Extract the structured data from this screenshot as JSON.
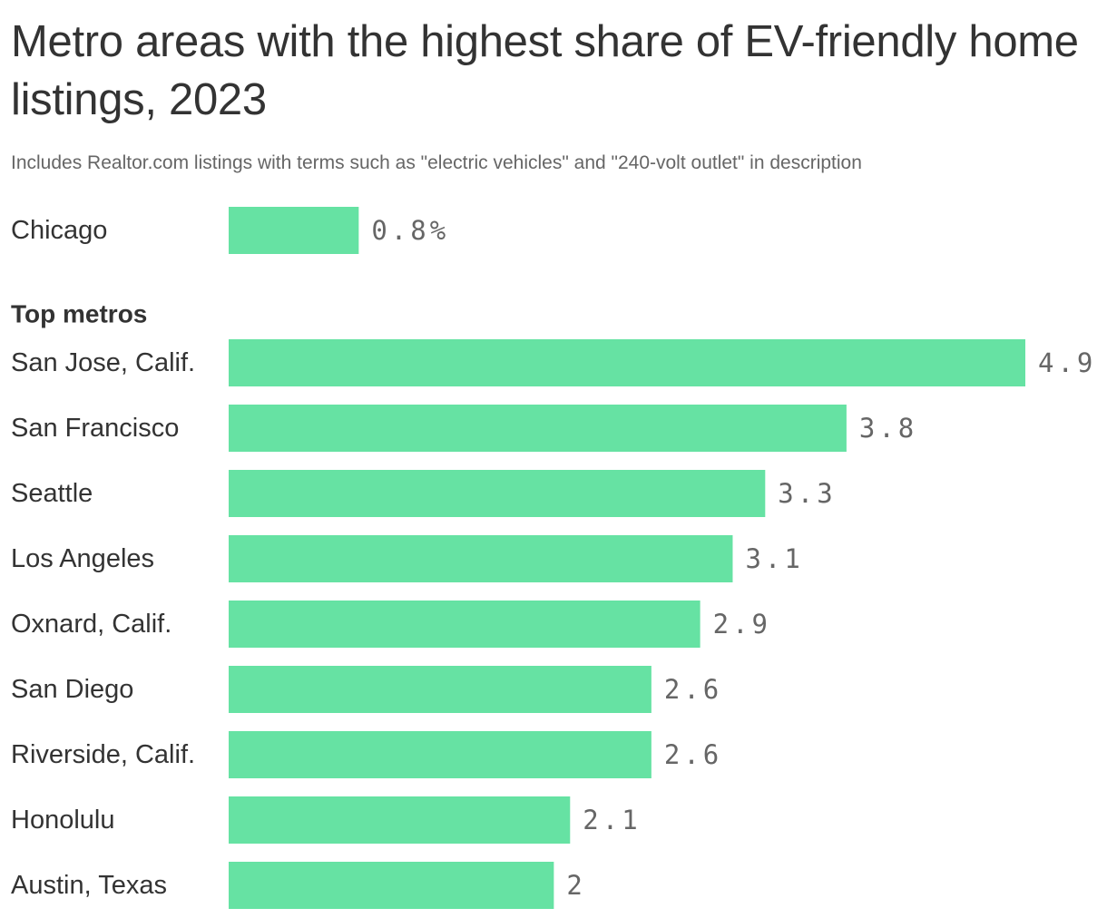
{
  "chart_data": {
    "type": "bar",
    "orientation": "horizontal",
    "title": "Metro areas with the highest share of EV-friendly home listings, 2023",
    "subtitle": "Includes Realtor.com listings with terms such as \"electric vehicles\" and \"240-volt outlet\" in description",
    "colors": {
      "bar": "#66e2a3"
    },
    "reference": {
      "category": "Chicago",
      "value": 0.8,
      "value_label": "0.8%"
    },
    "group_label": "Top metros",
    "categories": [
      "San Jose, Calif.",
      "San Francisco",
      "Seattle",
      "Los Angeles",
      "Oxnard, Calif.",
      "San Diego",
      "Riverside, Calif.",
      "Honolulu",
      "Austin, Texas"
    ],
    "values": [
      4.9,
      3.8,
      3.3,
      3.1,
      2.9,
      2.6,
      2.6,
      2.1,
      2
    ],
    "value_labels": [
      "4.9",
      "3.8",
      "3.3",
      "3.1",
      "2.9",
      "2.6",
      "2.6",
      "2.1",
      "2"
    ],
    "xlim": [
      0,
      4.9
    ],
    "grid": false,
    "legend": "none"
  }
}
